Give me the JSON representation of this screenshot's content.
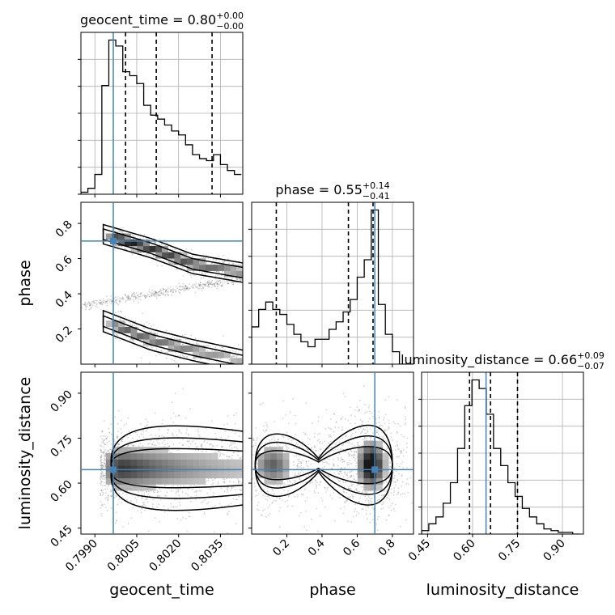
{
  "colors": {
    "truth": "#4682b4",
    "hist": "#000000",
    "quantile": "#000000",
    "grid": "#b0b0b0",
    "scatter": "#555555"
  },
  "chart_data": {
    "type": "corner",
    "parameters": [
      "geocent_time",
      "phase",
      "luminosity_distance"
    ],
    "truths": {
      "geocent_time": 0.79966,
      "phase": 0.7,
      "luminosity_distance": 0.645
    },
    "panels": [
      {
        "id": "geocent_time-hist",
        "type": "histogram",
        "parameter": "geocent_time",
        "title": {
          "label": "geocent_time = 0.80",
          "plus": "+0.00",
          "minus": "−0.00"
        },
        "xlim": [
          0.7985,
          0.8043
        ],
        "bin_edges_start": 0.7985,
        "bin_width": 0.00025,
        "counts": [
          0.01,
          0.03,
          0.1,
          0.55,
          0.78,
          0.75,
          0.62,
          0.6,
          0.56,
          0.45,
          0.4,
          0.38,
          0.35,
          0.32,
          0.3,
          0.25,
          0.2,
          0.18,
          0.17,
          0.2,
          0.15,
          0.12,
          0.1
        ],
        "quantiles": [
          0.8001,
          0.8012,
          0.8032
        ],
        "grid": true
      },
      {
        "id": "phase-hist",
        "type": "histogram",
        "parameter": "phase",
        "title": {
          "label": "phase = 0.55",
          "plus": "+0.14",
          "minus": "−0.41"
        },
        "xlim": [
          0.0,
          0.92
        ],
        "bin_edges_start": 0.0,
        "bin_width": 0.04,
        "counts": [
          0.15,
          0.22,
          0.25,
          0.22,
          0.2,
          0.16,
          0.12,
          0.09,
          0.07,
          0.1,
          0.1,
          0.14,
          0.17,
          0.21,
          0.26,
          0.35,
          0.42,
          0.62,
          0.24,
          0.12,
          0.05,
          0.0,
          0.0
        ],
        "quantiles": [
          0.14,
          0.55,
          0.69
        ],
        "grid": true
      },
      {
        "id": "luminosity_distance-hist",
        "type": "histogram",
        "parameter": "luminosity_distance",
        "title": {
          "label": "luminosity_distance = 0.66",
          "plus": "+0.09",
          "minus": "−0.07"
        },
        "xlim": [
          0.43,
          0.97
        ],
        "bin_edges_start": 0.43,
        "bin_width": 0.024,
        "counts": [
          0.02,
          0.06,
          0.1,
          0.18,
          0.3,
          0.5,
          0.75,
          0.9,
          0.85,
          0.7,
          0.5,
          0.4,
          0.3,
          0.22,
          0.15,
          0.1,
          0.06,
          0.03,
          0.02,
          0.01,
          0.01,
          0.0
        ],
        "quantiles": [
          0.59,
          0.66,
          0.75
        ],
        "grid": true
      },
      {
        "id": "phase-vs-geocent_time",
        "type": "density_contour",
        "x": "geocent_time",
        "y": "phase",
        "xlim": [
          0.7985,
          0.8043
        ],
        "ylim": [
          0.0,
          0.92
        ],
        "modes": [
          {
            "x": [
              0.7997,
              0.801,
              0.8025,
              0.8043
            ],
            "y": [
              0.72,
              0.66,
              0.57,
              0.52
            ]
          },
          {
            "x": [
              0.7997,
              0.801,
              0.8025,
              0.8043
            ],
            "y": [
              0.22,
              0.14,
              0.08,
              0.02
            ]
          },
          {
            "x": [
              0.7985,
              0.8005,
              0.8025,
              0.8043
            ],
            "y": [
              0.33,
              0.38,
              0.44,
              0.48
            ]
          }
        ]
      },
      {
        "id": "luminosity_distance-vs-geocent_time",
        "type": "density_contour",
        "x": "geocent_time",
        "y": "luminosity_distance",
        "xlim": [
          0.7985,
          0.8043
        ],
        "ylim": [
          0.43,
          0.97
        ],
        "peak": {
          "x": 0.8,
          "y": 0.65
        }
      },
      {
        "id": "luminosity_distance-vs-phase",
        "type": "density_contour",
        "x": "phase",
        "y": "luminosity_distance",
        "xlim": [
          0.0,
          0.92
        ],
        "ylim": [
          0.43,
          0.97
        ],
        "peaks": [
          {
            "x": 0.68,
            "y": 0.66
          },
          {
            "x": 0.12,
            "y": 0.66
          }
        ]
      }
    ],
    "axes": {
      "geocent_time": {
        "label": "geocent_time",
        "ticks": [
          "0.7990",
          "0.8005",
          "0.8020",
          "0.8035"
        ]
      },
      "phase": {
        "label": "phase",
        "ticks": [
          "0.2",
          "0.4",
          "0.6",
          "0.8"
        ]
      },
      "luminosity_distance": {
        "label": "luminosity_distance",
        "ticks": [
          "0.45",
          "0.60",
          "0.75",
          "0.90"
        ]
      }
    }
  }
}
